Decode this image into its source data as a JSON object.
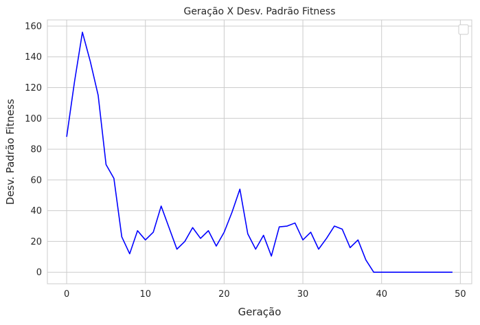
{
  "chart_data": {
    "type": "line",
    "title": "Geração X Desv. Padrão Fitness",
    "xlabel": "Geração",
    "ylabel": "Desv. Padrão Fitness",
    "xlim": [
      -2.45,
      51.45
    ],
    "ylim": [
      -7.5,
      164
    ],
    "xticks": [
      0,
      10,
      20,
      30,
      40,
      50
    ],
    "yticks": [
      0,
      20,
      40,
      60,
      80,
      100,
      120,
      140,
      160
    ],
    "grid": true,
    "legend": "top-right, empty",
    "line_color": "#0000ff",
    "x": [
      0,
      1,
      2,
      3,
      4,
      5,
      6,
      7,
      8,
      9,
      10,
      11,
      12,
      13,
      14,
      15,
      16,
      17,
      18,
      19,
      20,
      21,
      22,
      23,
      24,
      25,
      26,
      27,
      28,
      29,
      30,
      31,
      32,
      33,
      34,
      35,
      36,
      37,
      38,
      39,
      40,
      41,
      42,
      43,
      44,
      45,
      46,
      47,
      48,
      49
    ],
    "y": [
      88,
      124,
      156,
      137,
      115,
      70,
      61,
      23,
      12,
      27,
      21,
      26,
      43,
      29,
      15,
      20,
      29,
      22,
      27,
      17,
      26,
      39,
      54,
      25,
      15,
      24,
      10.5,
      29.5,
      30,
      32,
      21,
      26,
      15,
      22,
      30,
      28,
      16,
      21,
      8,
      0,
      0,
      0,
      0,
      0,
      0,
      0,
      0,
      0,
      0,
      0
    ]
  }
}
